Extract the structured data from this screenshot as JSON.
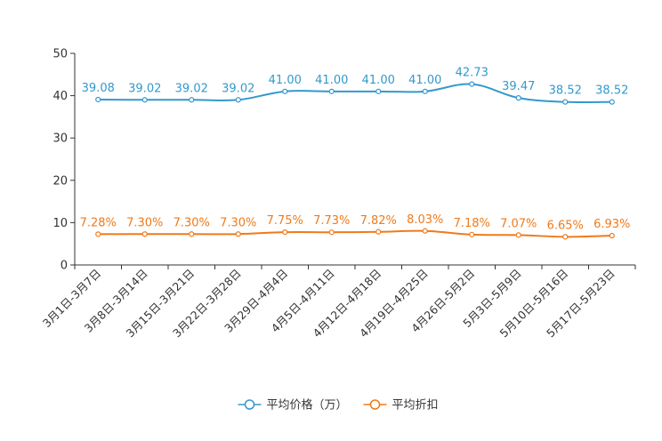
{
  "chart_data": {
    "type": "line",
    "categories": [
      "3月1日-3月7日",
      "3月8日-3月14日",
      "3月15日-3月21日",
      "3月22日-3月28日",
      "3月29日-4月4日",
      "4月5日-4月11日",
      "4月12日-4月18日",
      "4月19日-4月25日",
      "4月26日-5月2日",
      "5月3日-5月9日",
      "5月10日-5月16日",
      "5月17日-5月23日"
    ],
    "ylim": [
      0,
      50
    ],
    "yticks": [
      0,
      10,
      20,
      30,
      40,
      50
    ],
    "series": [
      {
        "name": "平均价格（万）",
        "color": "#3399cc",
        "values": [
          39.08,
          39.02,
          39.02,
          39.02,
          41.0,
          41.0,
          41.0,
          41.0,
          42.73,
          39.47,
          38.52,
          38.52
        ],
        "labels": [
          "39.08",
          "39.02",
          "39.02",
          "39.02",
          "41.00",
          "41.00",
          "41.00",
          "41.00",
          "42.73",
          "39.47",
          "38.52",
          "38.52"
        ]
      },
      {
        "name": "平均折扣",
        "color": "#f07a1a",
        "values": [
          7.28,
          7.3,
          7.3,
          7.3,
          7.75,
          7.73,
          7.82,
          8.03,
          7.18,
          7.07,
          6.65,
          6.93
        ],
        "labels": [
          "7.28%",
          "7.30%",
          "7.30%",
          "7.30%",
          "7.75%",
          "7.73%",
          "7.82%",
          "8.03%",
          "7.18%",
          "7.07%",
          "6.65%",
          "6.93%"
        ]
      }
    ],
    "legend_position": "bottom-center",
    "grid": false
  }
}
